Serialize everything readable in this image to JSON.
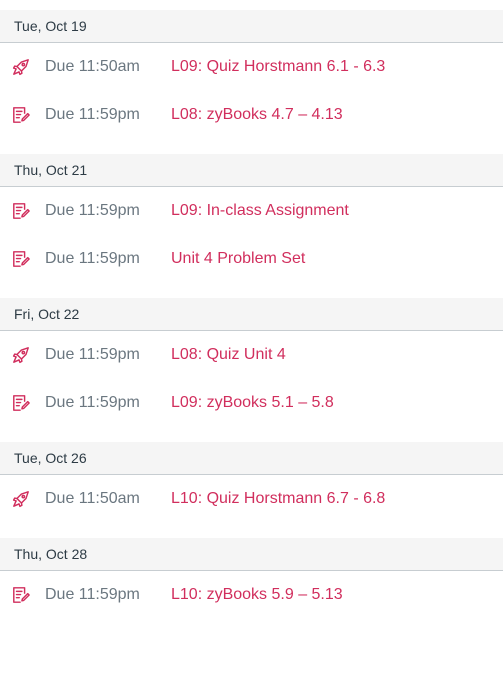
{
  "colors": {
    "accent": "#d12e5d",
    "muted_text": "#6b7780",
    "header_bg": "#f5f5f5",
    "header_text": "#2d3b45",
    "divider": "#c7cdd1"
  },
  "days": [
    {
      "date": "Tue, Oct 19",
      "items": [
        {
          "icon": "quiz-icon",
          "due": "Due 11:50am",
          "title": "L09: Quiz Horstmann 6.1 - 6.3"
        },
        {
          "icon": "assignment-icon",
          "due": "Due 11:59pm",
          "title": "L08: zyBooks 4.7 – 4.13"
        }
      ]
    },
    {
      "date": "Thu, Oct 21",
      "items": [
        {
          "icon": "assignment-icon",
          "due": "Due 11:59pm",
          "title": "L09: In-class Assignment"
        },
        {
          "icon": "assignment-icon",
          "due": "Due 11:59pm",
          "title": "Unit 4 Problem Set"
        }
      ]
    },
    {
      "date": "Fri, Oct 22",
      "items": [
        {
          "icon": "quiz-icon",
          "due": "Due 11:59pm",
          "title": "L08: Quiz Unit 4"
        },
        {
          "icon": "assignment-icon",
          "due": "Due 11:59pm",
          "title": "L09: zyBooks 5.1 – 5.8"
        }
      ]
    },
    {
      "date": "Tue, Oct 26",
      "items": [
        {
          "icon": "quiz-icon",
          "due": "Due 11:50am",
          "title": "L10: Quiz Horstmann 6.7 - 6.8"
        }
      ]
    },
    {
      "date": "Thu, Oct 28",
      "items": [
        {
          "icon": "assignment-icon",
          "due": "Due 11:59pm",
          "title": "L10: zyBooks 5.9 – 5.13"
        }
      ]
    }
  ]
}
